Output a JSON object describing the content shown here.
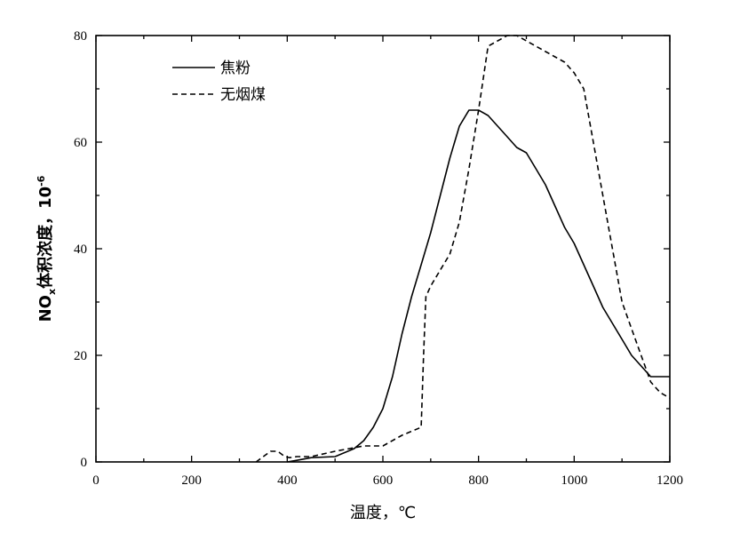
{
  "chart_data": {
    "type": "line",
    "xlabel": "温度，℃",
    "ylabel": {
      "prefix": "NO",
      "subscript": "x",
      "middle": "体积浓度，10",
      "superscript": "-6"
    },
    "xlim": [
      0,
      1200
    ],
    "ylim": [
      0,
      80
    ],
    "xticks": [
      0,
      200,
      400,
      600,
      800,
      1000,
      1200
    ],
    "yticks": [
      0,
      20,
      40,
      60,
      80
    ],
    "xtick_labels": [
      "0",
      "200",
      "400",
      "600",
      "800",
      "1000",
      "1200"
    ],
    "ytick_labels": [
      "0",
      "20",
      "40",
      "60",
      "80"
    ],
    "grid": false,
    "legend_position": "top-left",
    "series": [
      {
        "name": "焦粉",
        "line_style": "solid",
        "color": "#000000",
        "x": [
          400,
          420,
          450,
          500,
          540,
          560,
          580,
          600,
          620,
          640,
          660,
          680,
          700,
          720,
          740,
          760,
          780,
          800,
          820,
          840,
          860,
          880,
          900,
          920,
          940,
          960,
          980,
          1000,
          1020,
          1040,
          1060,
          1080,
          1100,
          1120,
          1140,
          1160,
          1180,
          1200
        ],
        "y": [
          0,
          0.3,
          0.8,
          1,
          2.5,
          4,
          6.5,
          10,
          16,
          24,
          31,
          37,
          43,
          50,
          57,
          63,
          66,
          66,
          65,
          63,
          61,
          59,
          58,
          55,
          52,
          48,
          44,
          41,
          37,
          33,
          29,
          26,
          23,
          20,
          18,
          16,
          16,
          16
        ]
      },
      {
        "name": "无烟煤",
        "line_style": "dashed",
        "color": "#000000",
        "x": [
          335,
          350,
          365,
          380,
          395,
          405,
          420,
          450,
          500,
          560,
          600,
          640,
          680,
          685,
          690,
          700,
          720,
          740,
          760,
          780,
          800,
          820,
          840,
          860,
          880,
          900,
          920,
          940,
          960,
          980,
          1000,
          1020,
          1040,
          1060,
          1080,
          1100,
          1120,
          1140,
          1160,
          1180,
          1200
        ],
        "y": [
          0,
          1,
          2,
          2,
          1,
          0.8,
          1,
          1,
          2,
          3,
          3,
          5,
          6.5,
          20,
          31,
          33,
          36,
          39,
          45,
          55,
          66,
          78,
          79,
          80,
          80,
          79,
          78,
          77,
          76,
          75,
          73,
          70,
          60,
          50,
          40,
          30,
          25,
          20,
          15,
          13,
          12
        ]
      }
    ]
  }
}
